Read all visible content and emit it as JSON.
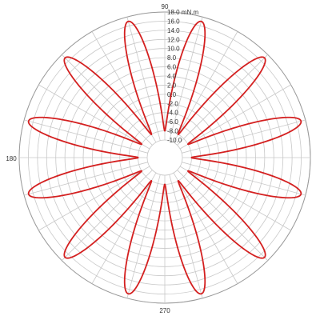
{
  "chart_data": {
    "type": "line",
    "coordinate_system": "polar",
    "title": "",
    "radial_axis": {
      "label": "mN.m",
      "range": [
        -10.0,
        18.0
      ],
      "ticks": [
        -10.0,
        -8.0,
        -6.0,
        -4.0,
        -2.0,
        0.0,
        2.0,
        4.0,
        6.0,
        8.0,
        10.0,
        12.0,
        14.0,
        16.0,
        18.0
      ],
      "tick_labels": [
        "-10.0",
        "-8.0",
        "-6.0",
        "-4.0",
        "-2.0",
        "0.0",
        "2.0",
        "4.0",
        "6.0",
        "8.0",
        "10.0",
        "12.0",
        "14.0",
        "16.0",
        "18.0 mN.m"
      ]
    },
    "angular_axis": {
      "unit": "degrees",
      "labels": [
        {
          "angle": 90,
          "text": "90"
        },
        {
          "angle": 180,
          "text": "180"
        },
        {
          "angle": 270,
          "text": "270"
        }
      ],
      "spoke_interval_deg": 15
    },
    "grid": true,
    "series": [
      {
        "color": "#d42020",
        "curve": "rose",
        "petals": 12,
        "petal_center_angles_deg": [
          15,
          45,
          75,
          105,
          135,
          165,
          195,
          225,
          255,
          285,
          315,
          345
        ],
        "peak_value": 17.0,
        "min_value": -8.0
      }
    ]
  }
}
